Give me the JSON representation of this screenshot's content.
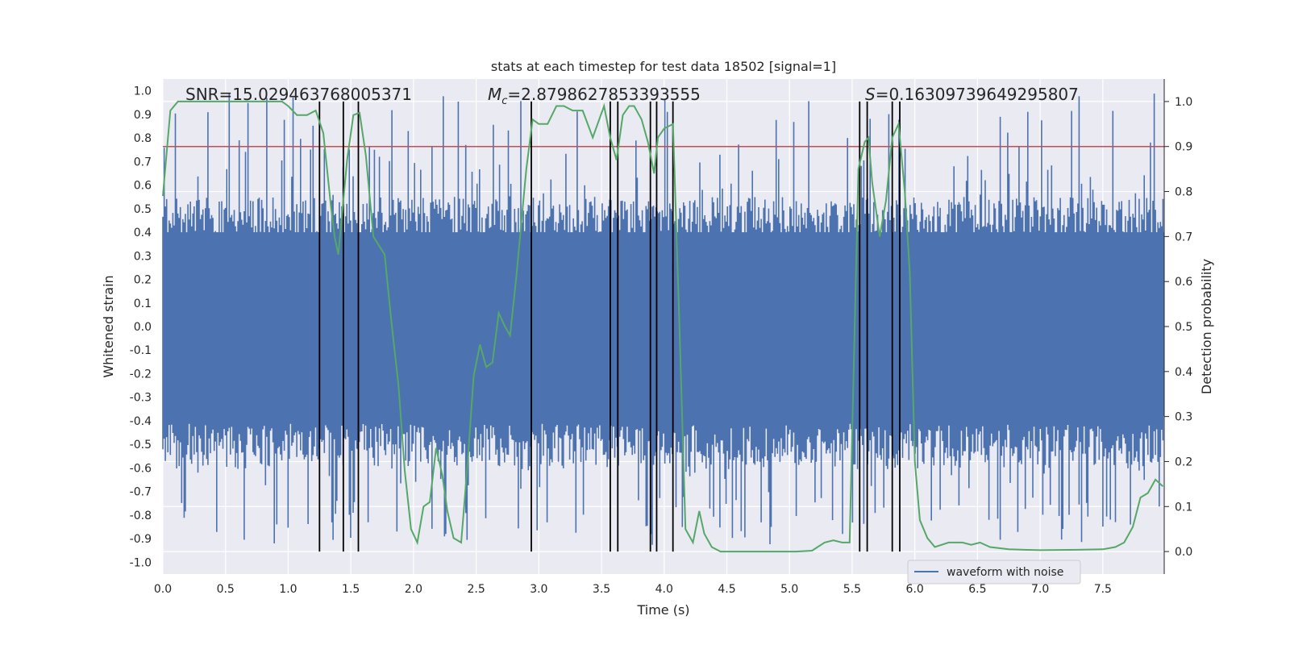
{
  "chart_data": {
    "type": "line",
    "title": "stats at each timestep for test data 18502 [signal=1]",
    "xlabel": "Time (s)",
    "ylabel": "Whitened strain",
    "ylabel_right": "Detection probability",
    "xlim": [
      0,
      7.99
    ],
    "ylim": [
      -1.05,
      1.05
    ],
    "ylim_right": [
      -0.05,
      1.05
    ],
    "x_ticks": [
      "0.0",
      "0.5",
      "1.0",
      "1.5",
      "2.0",
      "2.5",
      "3.0",
      "3.5",
      "4.0",
      "4.5",
      "5.0",
      "5.5",
      "6.0",
      "6.5",
      "7.0",
      "7.5"
    ],
    "y_ticks": [
      "1.0",
      "0.9",
      "0.8",
      "0.7",
      "0.6",
      "0.5",
      "0.4",
      "0.3",
      "0.2",
      "0.1",
      "0.0",
      "-0.1",
      "-0.2",
      "-0.3",
      "-0.4",
      "-0.5",
      "-0.6",
      "-0.7",
      "-0.8",
      "-0.9",
      "-1.0"
    ],
    "y_right_ticks": [
      "1.0",
      "0.9",
      "0.8",
      "0.7",
      "0.6",
      "0.5",
      "0.4",
      "0.3",
      "0.2",
      "0.1",
      "0.0"
    ],
    "grid": true,
    "legend": {
      "entries": [
        "waveform with noise"
      ],
      "placement": "bottom-right"
    },
    "annotations": {
      "snr": "SNR=15.029463768005371",
      "mc_symbol": "M",
      "mc_subscript": "c",
      "mc_value": "=2.8798627853393555",
      "s_symbol": "S",
      "s_value": "=0.16309739649295807"
    },
    "threshold": {
      "value": 0.9,
      "axis": "right",
      "color": "#c44e52"
    },
    "colors": {
      "waveform": "#4c72b0",
      "probability": "#55a868",
      "threshold": "#c44e52",
      "events": "#000000",
      "background": "#eaeaf2"
    },
    "event_lines": [
      1.25,
      1.44,
      1.56,
      2.94,
      3.57,
      3.63,
      3.89,
      3.94,
      4.07,
      5.56,
      5.62,
      5.82,
      5.88
    ],
    "waveform_envelope": {
      "x": [
        0.0,
        1.0,
        2.0,
        3.0,
        4.0,
        5.0,
        6.0,
        7.0,
        7.99
      ],
      "upper_typical": [
        0.5,
        0.5,
        0.5,
        0.5,
        0.5,
        0.5,
        0.5,
        0.5,
        0.5
      ],
      "lower_typical": [
        -0.55,
        -0.55,
        -0.55,
        -0.55,
        -0.55,
        -0.55,
        -0.55,
        -0.55,
        -0.55
      ],
      "max_peak": 1.0,
      "min_peak": -0.93,
      "sample_count": 800
    },
    "series": [
      {
        "name": "detection probability",
        "axis": "right",
        "x": [
          0.0,
          0.06,
          0.12,
          0.2,
          0.3,
          0.5,
          0.7,
          0.9,
          0.95,
          1.0,
          1.07,
          1.15,
          1.22,
          1.28,
          1.34,
          1.37,
          1.4,
          1.47,
          1.52,
          1.57,
          1.62,
          1.68,
          1.77,
          1.82,
          1.88,
          1.93,
          1.98,
          2.03,
          2.08,
          2.13,
          2.18,
          2.23,
          2.27,
          2.32,
          2.38,
          2.43,
          2.48,
          2.53,
          2.58,
          2.63,
          2.68,
          2.73,
          2.77,
          2.82,
          2.87,
          2.9,
          2.95,
          3.0,
          3.07,
          3.14,
          3.2,
          3.27,
          3.35,
          3.43,
          3.52,
          3.57,
          3.62,
          3.67,
          3.72,
          3.76,
          3.82,
          3.87,
          3.92,
          3.95,
          4.0,
          4.07,
          4.12,
          4.17,
          4.23,
          4.28,
          4.32,
          4.38,
          4.45,
          4.6,
          4.75,
          4.9,
          5.05,
          5.18,
          5.28,
          5.35,
          5.42,
          5.48,
          5.55,
          5.6,
          5.63,
          5.66,
          5.72,
          5.77,
          5.82,
          5.87,
          5.92,
          5.96,
          6.0,
          6.04,
          6.1,
          6.16,
          6.27,
          6.38,
          6.45,
          6.52,
          6.6,
          6.75,
          7.0,
          7.3,
          7.5,
          7.6,
          7.67,
          7.74,
          7.8,
          7.86,
          7.92,
          7.98
        ],
        "values": [
          0.79,
          0.98,
          1.0,
          1.0,
          1.0,
          1.0,
          1.0,
          1.0,
          1.0,
          0.99,
          0.97,
          0.97,
          0.98,
          0.93,
          0.77,
          0.7,
          0.66,
          0.87,
          0.97,
          0.975,
          0.88,
          0.7,
          0.66,
          0.52,
          0.37,
          0.18,
          0.05,
          0.02,
          0.1,
          0.11,
          0.23,
          0.17,
          0.09,
          0.03,
          0.02,
          0.19,
          0.39,
          0.46,
          0.41,
          0.42,
          0.53,
          0.5,
          0.48,
          0.61,
          0.76,
          0.85,
          0.96,
          0.95,
          0.95,
          0.99,
          0.99,
          0.98,
          0.98,
          0.92,
          0.99,
          0.92,
          0.87,
          0.97,
          0.99,
          0.99,
          0.96,
          0.91,
          0.84,
          0.92,
          0.94,
          0.95,
          0.52,
          0.05,
          0.02,
          0.09,
          0.04,
          0.01,
          0.0,
          0.0,
          0.0,
          0.0,
          0.0,
          0.002,
          0.02,
          0.025,
          0.02,
          0.02,
          0.85,
          0.91,
          0.92,
          0.82,
          0.7,
          0.78,
          0.92,
          0.95,
          0.8,
          0.62,
          0.2,
          0.07,
          0.03,
          0.01,
          0.02,
          0.02,
          0.015,
          0.02,
          0.01,
          0.005,
          0.003,
          0.004,
          0.005,
          0.01,
          0.02,
          0.055,
          0.12,
          0.13,
          0.16,
          0.145
        ]
      }
    ]
  }
}
